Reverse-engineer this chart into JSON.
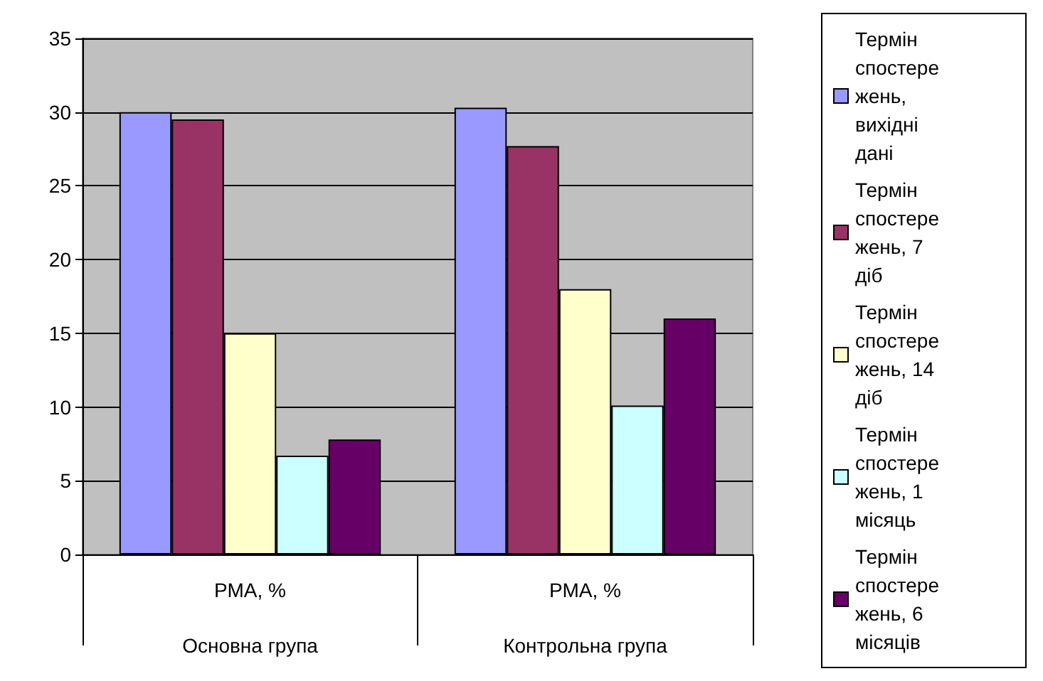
{
  "chart_data": {
    "type": "bar",
    "categories": [
      "РМА, %",
      "РМА, %"
    ],
    "annotations": [
      "Основна група",
      "Контрольна група"
    ],
    "series": [
      {
        "name": "Термін спостережень, вихідні дані",
        "color": "#9999ff",
        "values": [
          30.0,
          30.3
        ]
      },
      {
        "name": "Термін спостережень, 7 діб",
        "color": "#993366",
        "values": [
          29.5,
          27.7
        ]
      },
      {
        "name": "Термін спостережень, 14 діб",
        "color": "#ffffcc",
        "values": [
          15.0,
          18.0
        ]
      },
      {
        "name": "Термін спостережень, 1 місяць",
        "color": "#ccffff",
        "values": [
          6.7,
          10.1
        ]
      },
      {
        "name": "Термін спостережень, 6 місяців",
        "color": "#660066",
        "values": [
          7.8,
          16.0
        ]
      }
    ],
    "ylim": [
      0,
      35
    ],
    "yticks": [
      0,
      5,
      10,
      15,
      20,
      25,
      30,
      35
    ],
    "grid": "y",
    "legend": "right"
  }
}
